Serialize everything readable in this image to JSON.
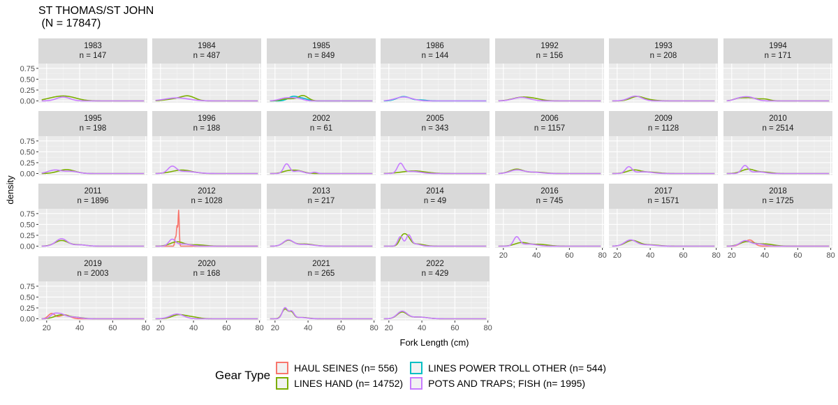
{
  "title": {
    "line1": "ST THOMAS/ST JOHN",
    "line2": " (N = 17847)"
  },
  "chart_data": {
    "type": "line",
    "chart_kind": "faceted density plot",
    "xlabel": "Fork Length (cm)",
    "ylabel": "density",
    "xlim": [
      15,
      81
    ],
    "ylim": [
      -0.04,
      0.86
    ],
    "x_ticks": [
      "20",
      "40",
      "60",
      "80"
    ],
    "y_ticks": [
      "0.00",
      "0.25",
      "0.50",
      "0.75"
    ],
    "grid": true,
    "legend": {
      "title": "Gear Type",
      "placement": "bottom",
      "entries": [
        {
          "key": "hs",
          "label": "HAUL SEINES (n= 556)",
          "color": "#F8766D"
        },
        {
          "key": "lp",
          "label": "LINES POWER TROLL OTHER (n= 544)",
          "color": "#00BFC4"
        },
        {
          "key": "lh",
          "label": "LINES HAND (n= 14752)",
          "color": "#7CAE00"
        },
        {
          "key": "pt",
          "label": "POTS AND TRAPS; FISH (n= 1995)",
          "color": "#C77CFF"
        }
      ]
    },
    "panels": [
      {
        "year": "1983",
        "n": "n = 147",
        "series": {
          "lh": [
            [
              25,
              0.06,
              6
            ],
            [
              33,
              0.08,
              6
            ]
          ],
          "pt": [
            [
              30,
              0.09,
              4
            ]
          ]
        }
      },
      {
        "year": "1984",
        "n": "n = 487",
        "series": {
          "lh": [
            [
              37,
              0.09,
              4
            ],
            [
              30,
              0.05,
              6
            ]
          ],
          "pt": [
            [
              30,
              0.07,
              7
            ]
          ]
        }
      },
      {
        "year": "1985",
        "n": "n = 849",
        "series": {
          "lp": [
            [
              31,
              0.1,
              3
            ],
            [
              37,
              0.05,
              3
            ]
          ],
          "lh": [
            [
              37,
              0.12,
              3
            ],
            [
              28,
              0.05,
              4
            ]
          ],
          "pt": [
            [
              27,
              0.07,
              4
            ],
            [
              34,
              0.05,
              3
            ]
          ]
        }
      },
      {
        "year": "1986",
        "n": "n = 144",
        "series": {
          "lp": [
            [
              29,
              0.1,
              4
            ],
            [
              40,
              0.02,
              3
            ]
          ],
          "pt": [
            [
              29,
              0.09,
              5
            ]
          ]
        }
      },
      {
        "year": "1992",
        "n": "n = 156",
        "series": {
          "lh": [
            [
              30,
              0.07,
              5
            ],
            [
              38,
              0.05,
              5
            ]
          ],
          "pt": [
            [
              31,
              0.08,
              5
            ]
          ]
        }
      },
      {
        "year": "1993",
        "n": "n = 208",
        "series": {
          "lh": [
            [
              32,
              0.1,
              4
            ],
            [
              40,
              0.02,
              4
            ]
          ],
          "pt": [
            [
              31,
              0.11,
              4
            ]
          ]
        }
      },
      {
        "year": "1994",
        "n": "n = 171",
        "series": {
          "lh": [
            [
              24,
              0.05,
              3
            ],
            [
              31,
              0.07,
              4
            ],
            [
              40,
              0.04,
              3
            ]
          ],
          "pt": [
            [
              30,
              0.09,
              4
            ],
            [
              24,
              0.04,
              3
            ]
          ]
        }
      },
      {
        "year": "1995",
        "n": "n = 198",
        "series": {
          "lh": [
            [
              32,
              0.09,
              5
            ]
          ],
          "pt": [
            [
              25,
              0.08,
              4
            ],
            [
              35,
              0.05,
              4
            ]
          ]
        }
      },
      {
        "year": "1996",
        "n": "n = 188",
        "series": {
          "lh": [
            [
              33,
              0.08,
              6
            ]
          ],
          "pt": [
            [
              27,
              0.15,
              2.5
            ],
            [
              35,
              0.05,
              6
            ]
          ]
        }
      },
      {
        "year": "2002",
        "n": "n = 61",
        "series": {
          "lh": [
            [
              33,
              0.07,
              4
            ],
            [
              27,
              0.04,
              3
            ]
          ],
          "pt": [
            [
              27,
              0.22,
              1.8
            ],
            [
              34,
              0.06,
              3
            ],
            [
              44,
              0.03,
              1.5
            ]
          ]
        }
      },
      {
        "year": "2005",
        "n": "n = 343",
        "series": {
          "lh": [
            [
              35,
              0.06,
              7
            ]
          ],
          "pt": [
            [
              27,
              0.22,
              1.8
            ],
            [
              34,
              0.05,
              5
            ]
          ]
        }
      },
      {
        "year": "2006",
        "n": "n = 1157",
        "series": {
          "lh": [
            [
              28,
              0.1,
              4
            ],
            [
              40,
              0.03,
              5
            ]
          ],
          "pt": [
            [
              28,
              0.08,
              4
            ],
            [
              38,
              0.03,
              5
            ]
          ]
        }
      },
      {
        "year": "2009",
        "n": "n = 1128",
        "series": {
          "lh": [
            [
              30,
              0.08,
              4
            ],
            [
              40,
              0.03,
              5
            ]
          ],
          "pt": [
            [
              27,
              0.15,
              2
            ],
            [
              36,
              0.04,
              5
            ]
          ]
        }
      },
      {
        "year": "2010",
        "n": "n = 2514",
        "series": {
          "lh": [
            [
              30,
              0.1,
              4
            ],
            [
              40,
              0.03,
              4
            ]
          ],
          "pt": [
            [
              28,
              0.18,
              2
            ],
            [
              36,
              0.04,
              4
            ]
          ]
        }
      },
      {
        "year": "2011",
        "n": "n = 1896",
        "series": {
          "lh": [
            [
              29,
              0.13,
              4
            ],
            [
              40,
              0.03,
              4
            ]
          ],
          "pt": [
            [
              29,
              0.17,
              3.5
            ],
            [
              40,
              0.03,
              4
            ]
          ]
        }
      },
      {
        "year": "2012",
        "n": "n = 1028",
        "series": {
          "hs": [
            [
              31,
              0.82,
              0.35
            ],
            [
              30,
              0.45,
              0.35
            ],
            [
              29,
              0.2,
              0.4
            ]
          ],
          "lh": [
            [
              30,
              0.1,
              4
            ],
            [
              42,
              0.03,
              5
            ]
          ],
          "pt": [
            [
              27,
              0.15,
              2
            ],
            [
              34,
              0.05,
              4
            ]
          ]
        }
      },
      {
        "year": "2013",
        "n": "n = 217",
        "series": {
          "lh": [
            [
              28,
              0.13,
              3
            ],
            [
              38,
              0.05,
              5
            ]
          ],
          "pt": [
            [
              28,
              0.14,
              3
            ],
            [
              38,
              0.04,
              5
            ]
          ]
        }
      },
      {
        "year": "2014",
        "n": "n = 49",
        "series": {
          "lh": [
            [
              28,
              0.18,
              1.8
            ],
            [
              31,
              0.2,
              2
            ],
            [
              37,
              0.05,
              4
            ]
          ],
          "pt": [
            [
              27,
              0.22,
              1.5
            ],
            [
              32,
              0.24,
              1.5
            ],
            [
              36,
              0.05,
              3
            ]
          ]
        }
      },
      {
        "year": "2016",
        "n": "n = 745",
        "series": {
          "lh": [
            [
              31,
              0.08,
              4
            ],
            [
              42,
              0.04,
              5
            ]
          ],
          "pt": [
            [
              28,
              0.2,
              1.8
            ],
            [
              35,
              0.05,
              5
            ]
          ]
        }
      },
      {
        "year": "2017",
        "n": "n = 1571",
        "series": {
          "lh": [
            [
              29,
              0.13,
              4
            ],
            [
              40,
              0.03,
              5
            ]
          ],
          "pt": [
            [
              28,
              0.14,
              3.5
            ],
            [
              38,
              0.03,
              5
            ]
          ]
        }
      },
      {
        "year": "2018",
        "n": "n = 1725",
        "series": {
          "hs": [
            [
              31,
              0.14,
              2.5
            ],
            [
              26,
              0.06,
              2
            ]
          ],
          "lh": [
            [
              29,
              0.1,
              4
            ],
            [
              40,
              0.05,
              5
            ]
          ],
          "pt": [
            [
              28,
              0.12,
              3
            ],
            [
              36,
              0.05,
              4
            ]
          ]
        }
      },
      {
        "year": "2019",
        "n": "n = 2003",
        "series": {
          "hs": [
            [
              23,
              0.12,
              2
            ],
            [
              31,
              0.09,
              3
            ]
          ],
          "lh": [
            [
              29,
              0.09,
              4
            ],
            [
              38,
              0.03,
              4
            ]
          ],
          "pt": [
            [
              28,
              0.11,
              3
            ],
            [
              24,
              0.07,
              2
            ],
            [
              36,
              0.04,
              4
            ]
          ]
        }
      },
      {
        "year": "2020",
        "n": "n = 168",
        "series": {
          "lh": [
            [
              31,
              0.09,
              4
            ],
            [
              39,
              0.04,
              4
            ]
          ],
          "pt": [
            [
              30,
              0.11,
              4
            ]
          ]
        }
      },
      {
        "year": "2021",
        "n": "n = 265",
        "series": {
          "lh": [
            [
              26,
              0.22,
              1.8
            ],
            [
              30,
              0.14,
              1.5
            ],
            [
              36,
              0.03,
              4
            ]
          ],
          "pt": [
            [
              26,
              0.25,
              1.6
            ],
            [
              30,
              0.16,
              1.5
            ],
            [
              35,
              0.03,
              4
            ]
          ]
        }
      },
      {
        "year": "2022",
        "n": "n = 429",
        "series": {
          "lh": [
            [
              28,
              0.15,
              3
            ],
            [
              38,
              0.04,
              5
            ]
          ],
          "pt": [
            [
              28,
              0.17,
              3
            ],
            [
              38,
              0.04,
              5
            ]
          ]
        }
      }
    ]
  }
}
